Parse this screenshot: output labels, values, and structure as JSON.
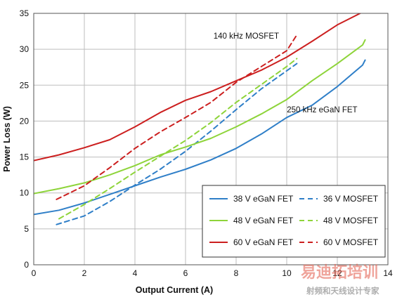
{
  "chart_data": {
    "type": "line",
    "title": "",
    "xlabel": "Output Current (A)",
    "ylabel": "Power Loss (W)",
    "xlim": [
      0,
      14
    ],
    "ylim": [
      0,
      35
    ],
    "x_ticks": [
      0,
      2,
      4,
      6,
      8,
      10,
      12,
      14
    ],
    "y_ticks": [
      0,
      5,
      10,
      15,
      20,
      25,
      30,
      35
    ],
    "grid": true,
    "legend_position": "bottom-right",
    "annotations": [
      {
        "text": "140 kHz MOSFET",
        "x": 8.4,
        "y": 31.5
      },
      {
        "text": "250 kHz eGaN FET",
        "x": 11.4,
        "y": 21.2
      }
    ],
    "series": [
      {
        "name": "38 V eGaN FET",
        "color": "#2f7fc8",
        "style": "solid",
        "x": [
          0,
          1,
          2,
          3,
          4,
          5,
          6,
          7,
          8,
          9,
          10,
          11,
          12,
          13,
          13.1
        ],
        "y": [
          7.0,
          7.6,
          8.6,
          9.8,
          11.0,
          12.2,
          13.3,
          14.6,
          16.2,
          18.2,
          20.5,
          22.2,
          24.8,
          27.8,
          28.5
        ]
      },
      {
        "name": "36 V MOSFET",
        "color": "#2f7fc8",
        "style": "dashed",
        "x": [
          0.9,
          2,
          3,
          4,
          5,
          6,
          7,
          8,
          9,
          10,
          10.4
        ],
        "y": [
          5.6,
          6.8,
          8.8,
          11.1,
          13.3,
          15.8,
          18.6,
          21.6,
          24.5,
          27.0,
          28.0
        ]
      },
      {
        "name": "48 V eGaN FET",
        "color": "#8ed43a",
        "style": "solid",
        "x": [
          0,
          1,
          2,
          3,
          4,
          5,
          6,
          7,
          8,
          9,
          10,
          11,
          12,
          13,
          13.1
        ],
        "y": [
          9.9,
          10.6,
          11.4,
          12.5,
          13.8,
          15.3,
          16.4,
          17.6,
          19.2,
          21.0,
          23.0,
          25.6,
          28.0,
          30.6,
          31.3
        ]
      },
      {
        "name": "48 V MOSFET",
        "color": "#8ed43a",
        "style": "dashed",
        "x": [
          1.0,
          2,
          3,
          4,
          5,
          6,
          7,
          8,
          9,
          10,
          10.4
        ],
        "y": [
          6.4,
          8.4,
          10.6,
          12.9,
          15.1,
          17.3,
          19.8,
          22.6,
          25.1,
          27.6,
          28.7
        ]
      },
      {
        "name": "60 V eGaN FET",
        "color": "#cc1f1f",
        "style": "solid",
        "x": [
          0,
          1,
          2,
          3,
          4,
          5,
          6,
          7,
          8,
          9,
          10,
          11,
          12,
          12.9
        ],
        "y": [
          14.5,
          15.3,
          16.3,
          17.4,
          19.2,
          21.2,
          22.9,
          24.1,
          25.6,
          27.1,
          28.9,
          31.1,
          33.4,
          35.0
        ]
      },
      {
        "name": "60 V MOSFET",
        "color": "#cc1f1f",
        "style": "dashed",
        "x": [
          0.9,
          2,
          3,
          4,
          5,
          6,
          7,
          8,
          9,
          10,
          10.4
        ],
        "y": [
          9.1,
          11.0,
          13.5,
          16.2,
          18.5,
          20.5,
          22.6,
          25.4,
          27.6,
          29.8,
          32.0
        ]
      }
    ],
    "legend_order": [
      0,
      1,
      2,
      3,
      4,
      5
    ]
  },
  "watermark": {
    "brand": "易迪拓培训",
    "tagline": "射频和天线设计专家",
    "colors": {
      "brand": "#e35a4a",
      "tagline": "#9a9a9a"
    }
  }
}
